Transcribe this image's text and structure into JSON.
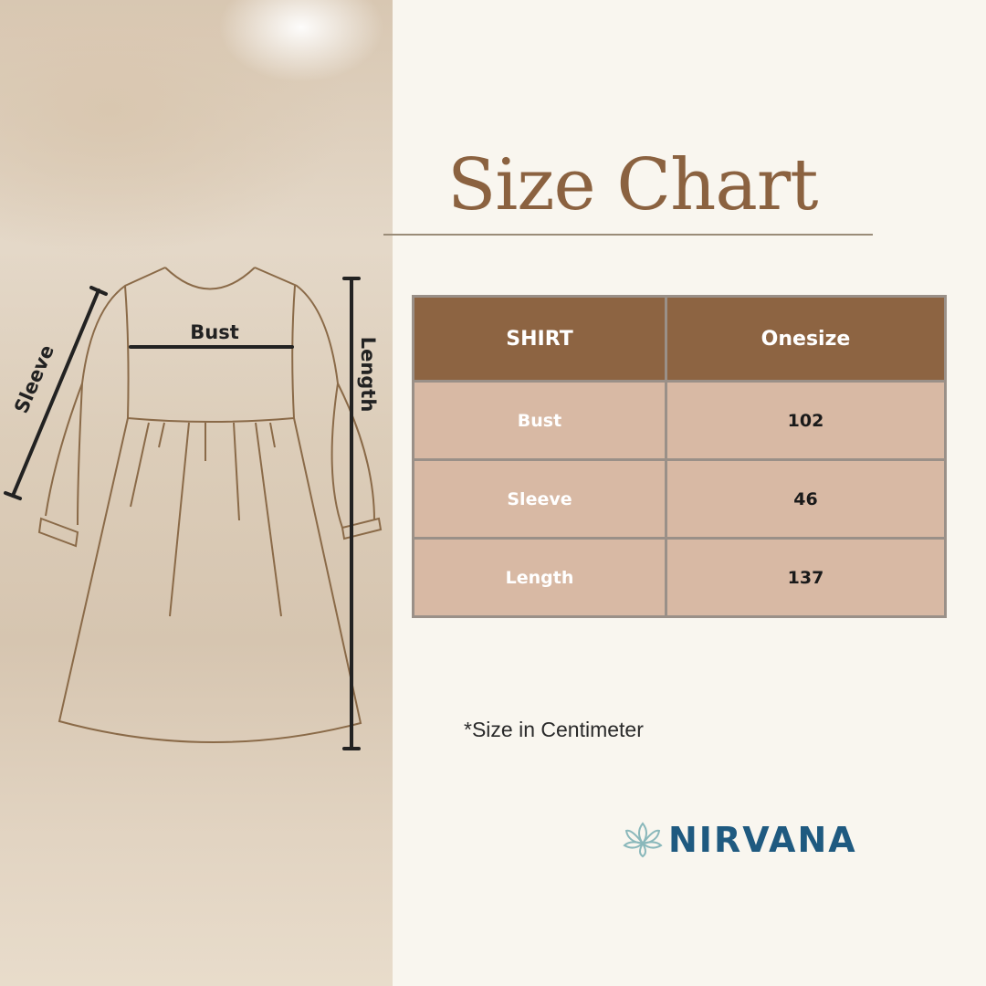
{
  "title": "Size Chart",
  "diagram": {
    "labels": {
      "bust": "Bust",
      "sleeve": "Sleeve",
      "length": "Length"
    }
  },
  "table": {
    "headers": [
      "SHIRT",
      "Onesize"
    ],
    "rows": [
      {
        "label": "Bust",
        "value": "102"
      },
      {
        "label": "Sleeve",
        "value": "46"
      },
      {
        "label": "Length",
        "value": "137"
      }
    ]
  },
  "note": "*Size in Centimeter",
  "brand": {
    "name": "NIRVANA",
    "icon": "lotus-icon",
    "color": "#1f5a80",
    "icon_color": "#8ab8bb"
  },
  "colors": {
    "title": "#8b6240",
    "header_bg": "#8d6442",
    "row_bg": "#d8b9a4",
    "background": "#f9f6ef"
  }
}
